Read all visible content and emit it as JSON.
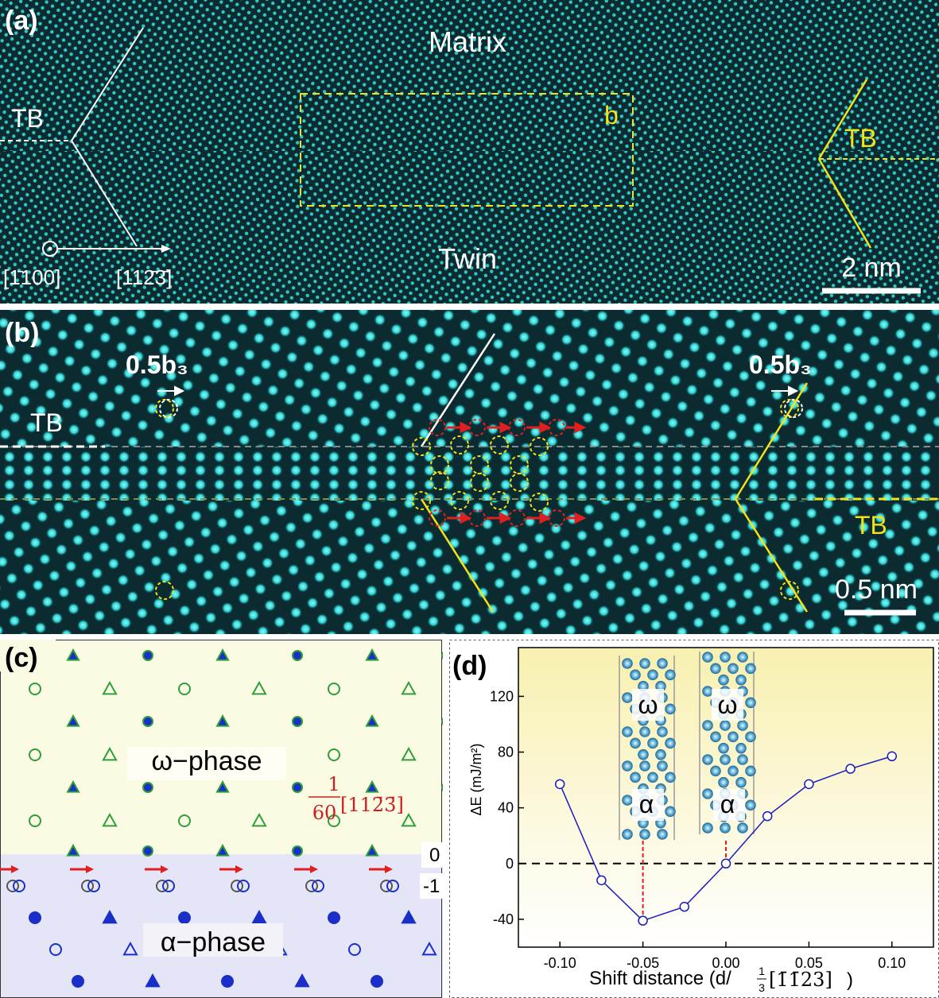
{
  "colors": {
    "hrtem_background": "#0b2b30",
    "atom": "#2fd6d6",
    "annotation_yellow": "#f2e21a",
    "annotation_red": "#e02020",
    "omega_region": "#fbfbe4",
    "alpha_region": "#e4e6f7",
    "omega_atom": "#2e9e3a",
    "alpha_atom": "#1a2fc8",
    "curve": "#1a1ac0"
  },
  "panel_a": {
    "label": "(a)",
    "matrix_label": "Matrix",
    "twin_label": "Twin",
    "tb_left": "TB",
    "tb_right": "TB",
    "box_label": "b",
    "dir_left": "[1̄100]",
    "dir_right": "[112̄3̄]",
    "scale_bar": "2 nm"
  },
  "panel_b": {
    "label": "(b)",
    "burgers_left": "0.5b₃",
    "burgers_right": "0.5b₃",
    "tb_left": "TB",
    "tb_right": "TB",
    "scale_bar": "0.5 nm"
  },
  "panel_c": {
    "label": "(c)",
    "omega_label": "ω−phase",
    "alpha_label": "α−phase",
    "fraction_num": "1",
    "fraction_den": "60",
    "fraction_dir": "[112̄3̄]",
    "tick_0": "0",
    "tick_m1": "-1"
  },
  "panel_d": {
    "label": "(d)",
    "ylabel": "ΔE (mJ/m²)",
    "xlabel_main": "Shift distance (d/",
    "xlabel_frac_num": "1",
    "xlabel_frac_den": "3",
    "xlabel_dir": "[1̄1̄23]",
    "xlabel_close": ")",
    "inset_omega_1": "ω",
    "inset_alpha_1": "α",
    "inset_omega_2": "ω",
    "inset_alpha_2": "α",
    "chart_data": {
      "type": "line",
      "x": [
        -0.1,
        -0.075,
        -0.05,
        -0.025,
        0.0,
        0.025,
        0.05,
        0.075,
        0.1
      ],
      "y": [
        57,
        -12,
        -41,
        -31,
        0,
        34,
        57,
        68,
        77
      ],
      "xlim": [
        -0.125,
        0.125
      ],
      "ylim": [
        -60,
        155
      ],
      "xticks": [
        -0.1,
        -0.05,
        0.0,
        0.05,
        0.1
      ],
      "xtick_labels": [
        "-0.10",
        "-0.05",
        "0.00",
        "0.05",
        "0.10"
      ],
      "yticks": [
        -40,
        0,
        40,
        80,
        120
      ],
      "ytick_labels": [
        "-40",
        "0",
        "40",
        "80",
        "120"
      ],
      "reference_line_y": 0,
      "marked_x": [
        -0.05,
        0.0
      ]
    }
  }
}
